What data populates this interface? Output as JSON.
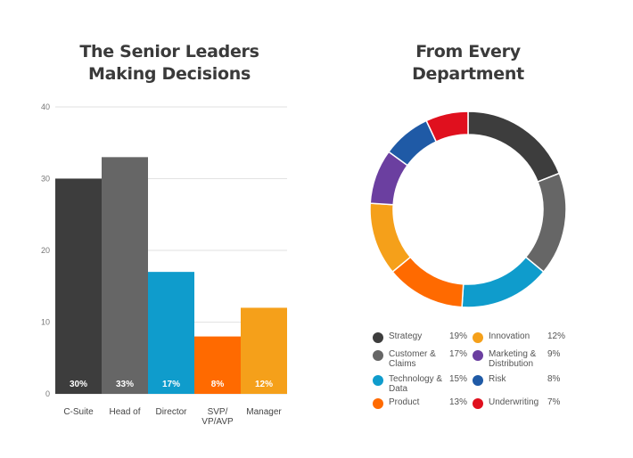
{
  "bar_title": {
    "line1": "The Senior Leaders",
    "line2": "Making Decisions"
  },
  "donut_title": {
    "line1": "From Every",
    "line2": "Department"
  },
  "chart_data": [
    {
      "type": "bar",
      "title": "The Senior Leaders Making Decisions",
      "categories": [
        "C-Suite",
        "Head of",
        "Director",
        "SVP/\nVP/AVP",
        "Manager"
      ],
      "values": [
        30,
        33,
        17,
        8,
        12
      ],
      "labels": [
        "30%",
        "33%",
        "17%",
        "8%",
        "12%"
      ],
      "colors": [
        "#3d3d3d",
        "#666666",
        "#0f9ccc",
        "#ff6a00",
        "#f5a01a"
      ],
      "ylim": [
        0,
        40
      ],
      "yticks": [
        0,
        10,
        20,
        30,
        40
      ],
      "grid": true
    },
    {
      "type": "pie",
      "title": "From Every Department",
      "donut": true,
      "slices": [
        {
          "name": "Strategy",
          "value": 19,
          "label": "19%",
          "color": "#3d3d3d"
        },
        {
          "name": "Customer & Claims",
          "value": 17,
          "label": "17%",
          "color": "#666666"
        },
        {
          "name": "Technology & Data",
          "value": 15,
          "label": "15%",
          "color": "#0f9ccc"
        },
        {
          "name": "Product",
          "value": 13,
          "label": "13%",
          "color": "#ff6a00"
        },
        {
          "name": "Innovation",
          "value": 12,
          "label": "12%",
          "color": "#f5a01a"
        },
        {
          "name": "Marketing & Distribution",
          "value": 9,
          "label": "9%",
          "color": "#6b3fa0"
        },
        {
          "name": "Risk",
          "value": 8,
          "label": "8%",
          "color": "#1f5aa6"
        },
        {
          "name": "Underwriting",
          "value": 7,
          "label": "7%",
          "color": "#e0101e"
        }
      ]
    }
  ]
}
